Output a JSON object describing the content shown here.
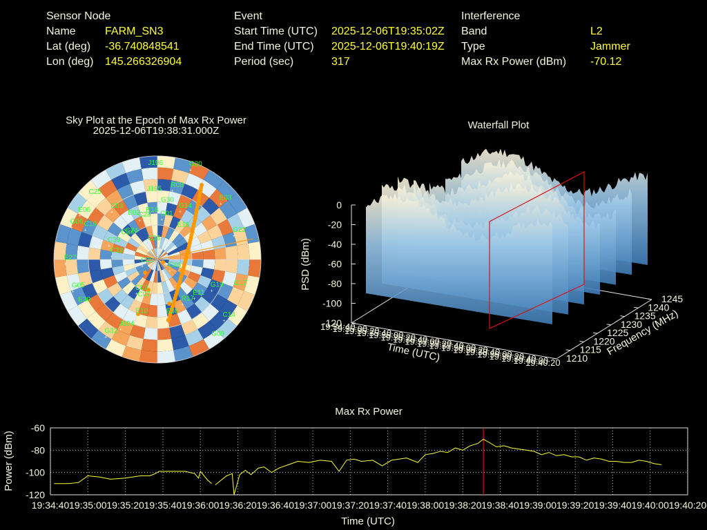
{
  "header": {
    "sensor": {
      "heading": "Sensor Node",
      "rows": [
        {
          "label": "Name",
          "value": "FARM_SN3"
        },
        {
          "label": "Lat (deg)",
          "value": "-36.740848541"
        },
        {
          "label": "Lon (deg)",
          "value": "145.266326904"
        }
      ]
    },
    "event": {
      "heading": "Event",
      "rows": [
        {
          "label": "Start Time (UTC)",
          "value": "2025-12-06T19:35:02Z"
        },
        {
          "label": "End Time (UTC)",
          "value": "2025-12-06T19:40:19Z"
        },
        {
          "label": "Period (sec)",
          "value": "317"
        }
      ]
    },
    "interference": {
      "heading": "Interference",
      "rows": [
        {
          "label": "Band",
          "value": "L2"
        },
        {
          "label": "Type",
          "value": "Jammer"
        },
        {
          "label": "Max Rx Power (dBm)",
          "value": "-70.12"
        }
      ]
    }
  },
  "skyplot": {
    "title": "Sky Plot at the Epoch of Max Rx Power",
    "subtitle": "2025-12-06T19:38:31.000Z",
    "colors": {
      "sat_label": "#33ff33",
      "track": "#ff9900",
      "ring": "#dcdcdc"
    },
    "satellites": [
      {
        "id": "J196",
        "az": 355,
        "el": 10
      },
      {
        "id": "G20",
        "az": 20,
        "el": 6
      },
      {
        "id": "J195",
        "az": 352,
        "el": 32
      },
      {
        "id": "C25",
        "az": 313,
        "el": 10
      },
      {
        "id": "R08",
        "az": 12,
        "el": 28
      },
      {
        "id": "C03",
        "az": 317,
        "el": 32
      },
      {
        "id": "G30",
        "az": 5,
        "el": 42
      },
      {
        "id": "R18",
        "az": 347,
        "el": 50
      },
      {
        "id": "C01",
        "az": 6,
        "el": 54
      },
      {
        "id": "G14",
        "az": 25,
        "el": 43
      },
      {
        "id": "E02",
        "az": 326,
        "el": 46
      },
      {
        "id": "C28",
        "az": 336,
        "el": 52
      },
      {
        "id": "E03",
        "az": 48,
        "el": 16
      },
      {
        "id": "C19",
        "az": 293,
        "el": 22
      },
      {
        "id": "E06",
        "az": 300,
        "el": 12
      },
      {
        "id": "G06",
        "az": 291,
        "el": 10
      },
      {
        "id": "C24",
        "az": 308,
        "el": 56
      },
      {
        "id": "C36",
        "az": 333,
        "el": 74
      },
      {
        "id": "E16",
        "az": 35,
        "el": 58
      },
      {
        "id": "C39",
        "az": 287,
        "el": 46
      },
      {
        "id": "C38",
        "az": 303,
        "el": 54
      },
      {
        "id": "G22",
        "az": 72,
        "el": 20
      },
      {
        "id": "C33",
        "az": 275,
        "el": 50
      },
      {
        "id": "E27",
        "az": 268,
        "el": 10
      },
      {
        "id": "C20",
        "az": 250,
        "el": 76
      },
      {
        "id": "C46",
        "az": 130,
        "el": 76
      },
      {
        "id": "C07",
        "az": 205,
        "el": 52
      },
      {
        "id": "C02",
        "az": 212,
        "el": 56
      },
      {
        "id": "G19",
        "az": 119,
        "el": 36
      },
      {
        "id": "G17",
        "az": 110,
        "el": 18
      },
      {
        "id": "E30",
        "az": 240,
        "el": 12
      },
      {
        "id": "E11",
        "az": 136,
        "el": 44
      },
      {
        "id": "R17",
        "az": 150,
        "el": 46
      },
      {
        "id": "G05",
        "az": 250,
        "el": 12
      },
      {
        "id": "C14",
        "az": 132,
        "el": 12
      },
      {
        "id": "J194",
        "az": 208,
        "el": 22
      },
      {
        "id": "E10",
        "az": 200,
        "el": 38
      },
      {
        "id": "G32",
        "az": 214,
        "el": 10
      },
      {
        "id": "E36",
        "az": 170,
        "el": 40
      },
      {
        "id": "G09",
        "az": 145,
        "el": 6
      }
    ]
  },
  "waterfall": {
    "title": "Waterfall Plot",
    "zlabel": "PSD (dBm)",
    "xlabel": "Time (UTC)",
    "ylabel": "Frequency (MHz)",
    "zticks": [
      "0",
      "-20",
      "-40",
      "-60",
      "-80",
      "-100",
      "-120"
    ],
    "freq_ticks": [
      "1210",
      "1215",
      "1220",
      "1225",
      "1230",
      "1235",
      "1240",
      "1245"
    ],
    "time_ticks": [
      "19:34:40",
      "19:35:00",
      "19:35:20",
      "19:35:40",
      "19:36:00",
      "19:36:20",
      "19:36:40",
      "19:37:00",
      "19:37:20",
      "19:37:40",
      "19:38:00",
      "19:38:20",
      "19:38:40",
      "19:39:00",
      "19:39:20",
      "19:39:40",
      "19:40:00",
      "19:40:20"
    ],
    "colors": {
      "marker": "#dd1111",
      "surface_top": "#fdf3d8",
      "surface_mid": "#9ac6e6",
      "surface_low": "#3f7cb7"
    }
  },
  "chart_data": {
    "type": "line",
    "title": "Max Rx Power",
    "xlabel": "Time (UTC)",
    "ylabel": "Power (dBm)",
    "ylim": [
      -120,
      -60
    ],
    "yticks": [
      "-60",
      "-80",
      "-100",
      "-120"
    ],
    "xticks": [
      "19:34:40",
      "19:35:00",
      "19:35:20",
      "19:35:40",
      "19:36:00",
      "19:36:20",
      "19:36:40",
      "19:37:00",
      "19:37:20",
      "19:37:40",
      "19:38:00",
      "19:38:20",
      "19:38:40",
      "19:39:00",
      "19:39:20",
      "19:39:40",
      "19:40:00",
      "19:40:20"
    ],
    "xlim": [
      "19:34:40",
      "19:40:20"
    ],
    "grid": true,
    "marker_time": "19:38:31",
    "colors": {
      "line": "#ffff33",
      "marker": "#dd1111",
      "grid": "#cccccc",
      "axes": "#e6e6e6"
    },
    "series": [
      {
        "x": [
          "19:34:42",
          "19:34:50",
          "19:34:55",
          "19:35:00",
          "19:35:06",
          "19:35:12",
          "19:35:20",
          "19:35:28",
          "19:35:33",
          "19:35:36",
          "19:35:38",
          "19:35:45",
          "19:35:52",
          "19:35:57",
          "19:35:59",
          "19:36:00",
          "19:36:04",
          "19:36:06"
        ],
        "y": [
          -110,
          -110,
          -109,
          -103,
          -104,
          -106,
          -105,
          -103,
          -103,
          -101,
          -99,
          -99,
          -99,
          -101,
          -105,
          -99,
          -107,
          -110
        ]
      },
      {
        "x": [
          "19:36:08",
          "19:36:14",
          "19:36:17",
          "19:36:18",
          "19:36:21",
          "19:36:24",
          "19:36:27",
          "19:36:31",
          "19:36:34",
          "19:36:38",
          "19:36:42",
          "19:36:47",
          "19:36:52",
          "19:36:58",
          "19:37:04",
          "19:37:10",
          "19:37:14",
          "19:37:18",
          "19:37:22",
          "19:37:26",
          "19:37:32",
          "19:37:37",
          "19:37:42",
          "19:37:46",
          "19:37:50",
          "19:37:56",
          "19:38:00",
          "19:38:04",
          "19:38:08",
          "19:38:12",
          "19:38:16",
          "19:38:20",
          "19:38:24",
          "19:38:28",
          "19:38:31",
          "19:38:34",
          "19:38:38",
          "19:38:42",
          "19:38:46",
          "19:38:50",
          "19:38:54",
          "19:38:58",
          "19:39:02",
          "19:39:06",
          "19:39:10",
          "19:39:14",
          "19:39:18",
          "19:39:22",
          "19:39:26",
          "19:39:30",
          "19:39:34",
          "19:39:38",
          "19:39:42",
          "19:39:46",
          "19:39:50",
          "19:39:54",
          "19:39:58",
          "19:40:02",
          "19:40:06"
        ],
        "y": [
          -111,
          -103,
          -101,
          -120,
          -102,
          -98,
          -102,
          -96,
          -95,
          -100,
          -96,
          -93,
          -90,
          -91,
          -89,
          -90,
          -99,
          -89,
          -88,
          -90,
          -89,
          -94,
          -89,
          -88,
          -87,
          -91,
          -84,
          -83,
          -81,
          -82,
          -78,
          -80,
          -76,
          -74,
          -70.12,
          -73,
          -77,
          -76,
          -78,
          -79,
          -80,
          -81,
          -84,
          -82,
          -85,
          -84,
          -86,
          -86,
          -89,
          -87,
          -88,
          -90,
          -90,
          -91,
          -91,
          -89,
          -90,
          -92,
          -93
        ]
      }
    ]
  }
}
